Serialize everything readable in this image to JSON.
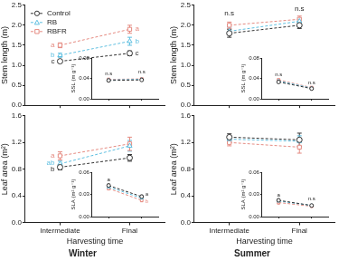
{
  "chart_data": [
    {
      "type": "line",
      "y_label": "Stem length (m)",
      "categories": [
        "Intermediate",
        "Final"
      ],
      "ylim": [
        0,
        2.5
      ],
      "yticks": [
        {
          "value": 0,
          "label": "0.0"
        },
        0.5,
        {
          "value": 1,
          "label": "1.0"
        },
        1.5,
        {
          "value": 2,
          "label": "2.0"
        },
        2.5
      ],
      "grid": false,
      "tick_labels": "y",
      "legend": "top-left",
      "series": [
        {
          "name": "Control",
          "color": "#333333",
          "marker": "circle",
          "line_style": "dashed",
          "values": [
            1.1,
            1.3
          ],
          "errors": [
            0.04,
            0.06
          ]
        },
        {
          "name": "RB",
          "color": "#5fbfe0",
          "marker": "triangle",
          "line_style": "dashed",
          "values": [
            1.25,
            1.6
          ],
          "errors": [
            0.05,
            0.1
          ]
        },
        {
          "name": "RBFR",
          "color": "#e58a80",
          "marker": "square",
          "line_style": "dashed",
          "values": [
            1.5,
            1.9
          ],
          "errors": [
            0.06,
            0.1
          ]
        }
      ],
      "annotations": [
        {
          "text": "a",
          "category": "Intermediate",
          "y": 1.5,
          "series": "RBFR"
        },
        {
          "text": "b",
          "category": "Intermediate",
          "y": 1.25,
          "series": "RB"
        },
        {
          "text": "c",
          "category": "Intermediate",
          "y": 1.1,
          "series": "Control"
        },
        {
          "text": "a",
          "category": "Final",
          "y": 1.9,
          "series": "RBFR"
        },
        {
          "text": "b",
          "category": "Final",
          "y": 1.6,
          "series": "RB"
        },
        {
          "text": "c",
          "category": "Final",
          "y": 1.3,
          "series": "Control"
        }
      ]
    },
    {
      "type": "line",
      "y_label": "SSL (m g⁻¹)",
      "categories": [
        "Intermediate",
        "Final"
      ],
      "ylim": [
        0,
        0.08
      ],
      "yticks": [
        {
          "value": 0,
          "label": "0.00"
        },
        0.04,
        0.08
      ],
      "grid": false,
      "tick_labels": "y",
      "series": [
        {
          "name": "Control",
          "color": "#333333",
          "marker": "circle",
          "line_style": "dashed",
          "values": [
            0.036,
            0.037
          ],
          "errors": [
            0.002,
            0.002
          ]
        },
        {
          "name": "RB",
          "color": "#5fbfe0",
          "marker": "triangle",
          "line_style": "dashed",
          "values": [
            0.037,
            0.038
          ],
          "errors": [
            0.002,
            0.002
          ]
        },
        {
          "name": "RBFR",
          "color": "#e58a80",
          "marker": "square",
          "line_style": "dashed",
          "values": [
            0.038,
            0.039
          ],
          "errors": [
            0.002,
            0.002
          ]
        }
      ],
      "annotations": [
        {
          "text": "n.s",
          "category": "Intermediate",
          "y": 0.05
        },
        {
          "text": "n.s",
          "category": "Final",
          "y": 0.052
        }
      ]
    },
    {
      "type": "line",
      "y_label": "Leaf area (m²)",
      "x_label": "Harvesting time",
      "title": "Winter",
      "categories": [
        "Intermediate",
        "Final"
      ],
      "ylim": [
        0,
        1.6
      ],
      "yticks": [
        {
          "value": 0,
          "label": "0.0"
        },
        0.4,
        0.8,
        1.2,
        1.6
      ],
      "grid": false,
      "series": [
        {
          "name": "Control",
          "color": "#333333",
          "marker": "circle",
          "line_style": "dashed",
          "values": [
            0.83,
            0.97
          ],
          "errors": [
            0.04,
            0.05
          ]
        },
        {
          "name": "RB",
          "color": "#5fbfe0",
          "marker": "triangle",
          "line_style": "dashed",
          "values": [
            0.88,
            1.15
          ],
          "errors": [
            0.04,
            0.08
          ]
        },
        {
          "name": "RBFR",
          "color": "#e58a80",
          "marker": "square",
          "line_style": "dashed",
          "values": [
            1.0,
            1.18
          ],
          "errors": [
            0.06,
            0.1
          ]
        }
      ],
      "annotations": [
        {
          "text": "a",
          "category": "Intermediate",
          "y": 1.0,
          "series": "RBFR"
        },
        {
          "text": "ab",
          "category": "Intermediate",
          "y": 0.9,
          "series": "RB"
        },
        {
          "text": "b",
          "category": "Intermediate",
          "y": 0.8,
          "series": "Control"
        }
      ]
    },
    {
      "type": "line",
      "y_label": "SLA (m² g⁻¹)",
      "categories": [
        "Intermediate",
        "Final"
      ],
      "ylim": [
        0,
        0.06
      ],
      "yticks": [
        {
          "value": 0,
          "label": "0.00"
        },
        0.03,
        0.06
      ],
      "grid": false,
      "tick_labels": "y",
      "series": [
        {
          "name": "Control",
          "color": "#333333",
          "marker": "circle",
          "line_style": "dashed",
          "values": [
            0.042,
            0.027
          ],
          "errors": [
            0.002,
            0.002
          ]
        },
        {
          "name": "RB",
          "color": "#5fbfe0",
          "marker": "triangle",
          "line_style": "dashed",
          "values": [
            0.04,
            0.025
          ],
          "errors": [
            0.002,
            0.002
          ]
        },
        {
          "name": "RBFR",
          "color": "#e58a80",
          "marker": "square",
          "line_style": "dashed",
          "values": [
            0.038,
            0.022
          ],
          "errors": [
            0.002,
            0.002
          ]
        }
      ],
      "annotations": [
        {
          "text": "a",
          "category": "Intermediate",
          "y": 0.05
        },
        {
          "text": "a",
          "category": "Final",
          "y": 0.03,
          "series": "Control"
        },
        {
          "text": "b",
          "category": "Final",
          "y": 0.02,
          "series": "RBFR"
        }
      ]
    },
    {
      "type": "line",
      "y_label": "Stem length (m)",
      "categories": [
        "Intermediate",
        "Final"
      ],
      "ylim": [
        0,
        2.5
      ],
      "yticks": [
        {
          "value": 0,
          "label": "0.0"
        },
        0.5,
        {
          "value": 1,
          "label": "1.0"
        },
        1.5,
        {
          "value": 2,
          "label": "2.0"
        },
        2.5
      ],
      "grid": false,
      "tick_labels": "y",
      "series": [
        {
          "name": "Control",
          "color": "#333333",
          "marker": "circle",
          "line_style": "dashed",
          "values": [
            1.8,
            2.0
          ],
          "errors": [
            0.1,
            0.08
          ]
        },
        {
          "name": "RB",
          "color": "#5fbfe0",
          "marker": "triangle",
          "line_style": "dashed",
          "values": [
            1.85,
            2.1
          ],
          "errors": [
            0.08,
            0.08
          ]
        },
        {
          "name": "RBFR",
          "color": "#e58a80",
          "marker": "square",
          "line_style": "dashed",
          "values": [
            2.0,
            2.15
          ],
          "errors": [
            0.08,
            0.08
          ]
        }
      ],
      "annotations": [
        {
          "text": "n.s",
          "category": "Intermediate",
          "y": 2.3
        },
        {
          "text": "n.s",
          "category": "Final",
          "y": 2.4
        }
      ]
    },
    {
      "type": "line",
      "y_label": "SSL (m g⁻¹)",
      "categories": [
        "Intermediate",
        "Final"
      ],
      "ylim": [
        0,
        0.08
      ],
      "yticks": [
        {
          "value": 0,
          "label": "0.00"
        },
        0.04,
        0.08
      ],
      "grid": false,
      "tick_labels": "y",
      "series": [
        {
          "name": "Control",
          "color": "#333333",
          "marker": "circle",
          "line_style": "dashed",
          "values": [
            0.033,
            0.02
          ],
          "errors": [
            0.002,
            0.002
          ]
        },
        {
          "name": "RB",
          "color": "#5fbfe0",
          "marker": "triangle",
          "line_style": "dashed",
          "values": [
            0.035,
            0.021
          ],
          "errors": [
            0.002,
            0.002
          ]
        },
        {
          "name": "RBFR",
          "color": "#e58a80",
          "marker": "square",
          "line_style": "dashed",
          "values": [
            0.037,
            0.022
          ],
          "errors": [
            0.002,
            0.002
          ]
        }
      ],
      "annotations": [
        {
          "text": "n.s",
          "category": "Intermediate",
          "y": 0.048
        },
        {
          "text": "n.s",
          "category": "Final",
          "y": 0.032
        }
      ]
    },
    {
      "type": "line",
      "y_label": "Leaf area (m²)",
      "x_label": "Harvesting time",
      "title": "Summer",
      "categories": [
        "Intermediate",
        "Final"
      ],
      "ylim": [
        0,
        1.6
      ],
      "yticks": [
        {
          "value": 0,
          "label": "0.0"
        },
        0.4,
        0.8,
        1.2,
        1.6
      ],
      "grid": false,
      "series": [
        {
          "name": "Control",
          "color": "#333333",
          "marker": "circle",
          "line_style": "dashed",
          "values": [
            1.28,
            1.24
          ],
          "errors": [
            0.05,
            0.1
          ]
        },
        {
          "name": "RB",
          "color": "#5fbfe0",
          "marker": "triangle",
          "line_style": "dashed",
          "values": [
            1.25,
            1.22
          ],
          "errors": [
            0.04,
            0.08
          ]
        },
        {
          "name": "RBFR",
          "color": "#e58a80",
          "marker": "square",
          "line_style": "dashed",
          "values": [
            1.2,
            1.13
          ],
          "errors": [
            0.05,
            0.09
          ]
        }
      ]
    },
    {
      "type": "line",
      "y_label": "SLA (m² g⁻¹)",
      "categories": [
        "Intermediate",
        "Final"
      ],
      "ylim": [
        0,
        0.06
      ],
      "yticks": [
        {
          "value": 0,
          "label": "0.00"
        },
        0.03,
        0.06
      ],
      "grid": false,
      "tick_labels": "y",
      "series": [
        {
          "name": "Control",
          "color": "#333333",
          "marker": "circle",
          "line_style": "dashed",
          "values": [
            0.022,
            0.015
          ],
          "errors": [
            0.002,
            0.001
          ]
        },
        {
          "name": "RB",
          "color": "#5fbfe0",
          "marker": "triangle",
          "line_style": "dashed",
          "values": [
            0.021,
            0.015
          ],
          "errors": [
            0.002,
            0.001
          ]
        },
        {
          "name": "RBFR",
          "color": "#e58a80",
          "marker": "square",
          "line_style": "dashed",
          "values": [
            0.019,
            0.014
          ],
          "errors": [
            0.002,
            0.001
          ]
        }
      ],
      "annotations": [
        {
          "text": "a",
          "category": "Intermediate",
          "y": 0.029
        },
        {
          "text": "n.s",
          "category": "Final",
          "y": 0.024
        }
      ]
    }
  ]
}
